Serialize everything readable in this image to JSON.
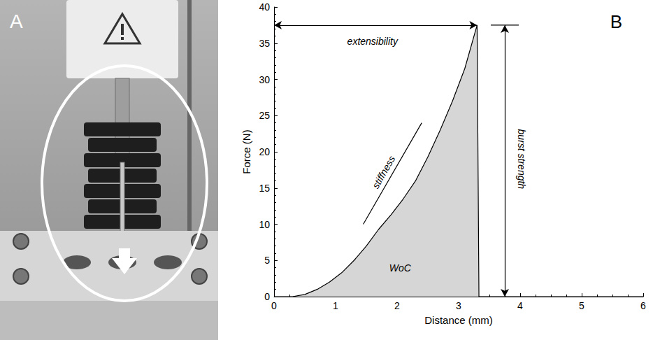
{
  "photo": {
    "label": "A"
  },
  "chart_data": {
    "type": "line",
    "panel_label": "B",
    "x_label": "Distance (mm)",
    "y_label": "Force (N)",
    "x": [
      0,
      0.3,
      0.5,
      0.7,
      0.9,
      1.1,
      1.3,
      1.5,
      1.7,
      1.9,
      2.1,
      2.3,
      2.5,
      2.7,
      2.9,
      3.1,
      3.3,
      3.33,
      4,
      5,
      6
    ],
    "values": [
      0,
      0,
      0.3,
      1,
      2,
      3.3,
      5,
      7,
      9.3,
      11.3,
      13.5,
      16,
      19.3,
      23,
      27,
      31.5,
      37.5,
      0,
      0,
      0,
      0
    ],
    "color": "#000000",
    "xlim": [
      0,
      6
    ],
    "xticks": [
      0,
      1,
      2,
      3,
      4,
      5,
      6
    ],
    "ylim": [
      0,
      40
    ],
    "yticks": [
      0,
      5,
      10,
      15,
      20,
      25,
      30,
      35,
      40
    ],
    "grid": false,
    "annotations": [
      {
        "text": "extensibility",
        "x": 1.6,
        "y": 35.3,
        "span": {
          "x": [
            0,
            3.3
          ],
          "y": [
            37.5,
            37.5
          ]
        },
        "marker": "arrow"
      },
      {
        "text": "burst strength",
        "x": 4.02,
        "y": 19,
        "span": {
          "x": [
            3.75,
            3.75
          ],
          "y": [
            0,
            37.5
          ]
        },
        "marker": "arrow"
      },
      {
        "text": "stiffness",
        "x": 1.78,
        "y": 17.2,
        "span": {
          "x": [
            1.45,
            2.4
          ],
          "y": [
            10,
            24
          ]
        },
        "marker": "none"
      },
      {
        "text": "WoC",
        "x": 2.05,
        "y": 4
      }
    ]
  }
}
